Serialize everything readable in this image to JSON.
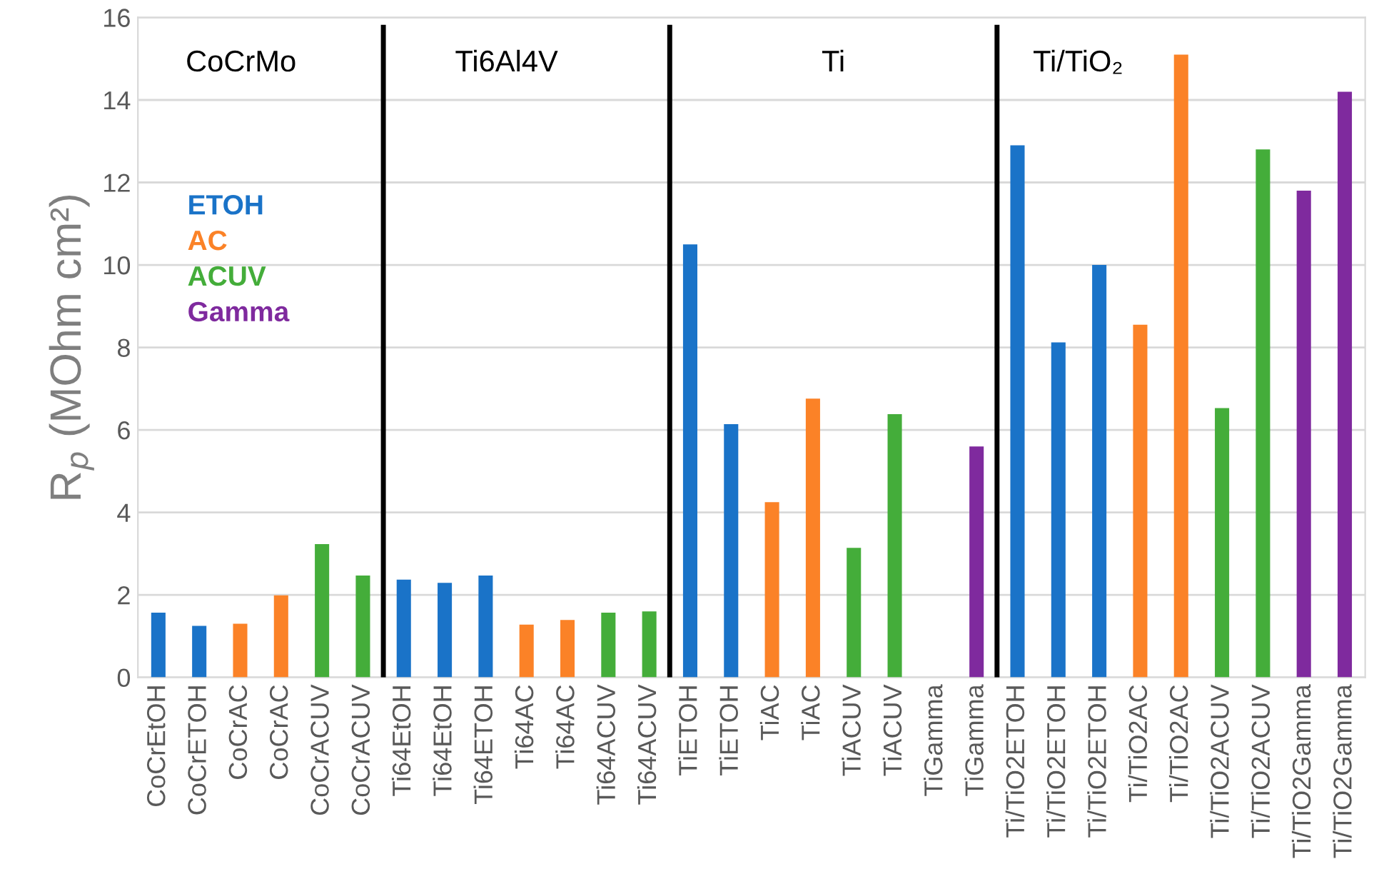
{
  "chart_data": {
    "type": "bar",
    "ylabel": "R$_{p}$ (MOhm cm²)",
    "categories": [
      "CoCrEtOH",
      "CoCrETOH",
      "CoCrAC",
      "CoCrAC",
      "CoCrACUV",
      "CoCrACUV",
      "Ti64EtOH",
      "Ti64EtOH",
      "Ti64ETOH",
      "Ti64AC",
      "Ti64AC",
      "Ti64ACUV",
      "Ti64ACUV",
      "TiETOH",
      "TiETOH",
      "TiAC",
      "TiAC",
      "TiACUV",
      "TiACUV",
      "TiGamma",
      "TiGamma",
      "Ti/TiO2ETOH",
      "Ti/TiO2ETOH",
      "Ti/TiO2ETOH",
      "Ti/TiO2AC",
      "Ti/TiO2AC",
      "Ti/TiO2ACUV",
      "Ti/TiO2ACUV",
      "Ti/TiO2Gamma",
      "Ti/TiO2Gamma"
    ],
    "series": [
      {
        "name": "ETOH",
        "color": "#1a73c8",
        "values": [
          1.57,
          1.25,
          null,
          null,
          null,
          null,
          2.37,
          2.29,
          2.47,
          null,
          null,
          null,
          null,
          10.5,
          6.14,
          null,
          null,
          null,
          null,
          null,
          null,
          12.9,
          8.12,
          10.0,
          null,
          null,
          null,
          null,
          null,
          null
        ]
      },
      {
        "name": "AC",
        "color": "#fb8227",
        "values": [
          null,
          null,
          1.3,
          1.99,
          null,
          null,
          null,
          null,
          null,
          1.28,
          1.39,
          null,
          null,
          null,
          null,
          4.25,
          6.76,
          null,
          null,
          null,
          null,
          null,
          null,
          null,
          8.55,
          15.1,
          null,
          null,
          null,
          null
        ]
      },
      {
        "name": "ACUV",
        "color": "#44ad3a",
        "values": [
          null,
          null,
          null,
          null,
          3.23,
          2.47,
          null,
          null,
          null,
          null,
          null,
          1.57,
          1.6,
          null,
          null,
          null,
          null,
          3.14,
          6.38,
          null,
          null,
          null,
          null,
          null,
          null,
          null,
          6.53,
          12.8,
          null,
          null
        ]
      },
      {
        "name": "Gamma",
        "color": "#7f2a9e",
        "values": [
          null,
          null,
          null,
          null,
          null,
          null,
          null,
          null,
          null,
          null,
          null,
          null,
          null,
          null,
          null,
          null,
          null,
          null,
          null,
          null,
          5.6,
          null,
          null,
          null,
          null,
          null,
          null,
          null,
          11.8,
          14.2
        ]
      }
    ],
    "ylim": [
      0,
      16
    ],
    "yticks": [
      0,
      2,
      4,
      6,
      8,
      10,
      12,
      14,
      16
    ],
    "grid": "y",
    "legend": "top left",
    "annotations": [
      "CoCrMo",
      "Ti6Al4V",
      "Ti",
      "Ti/TiO₂"
    ]
  }
}
